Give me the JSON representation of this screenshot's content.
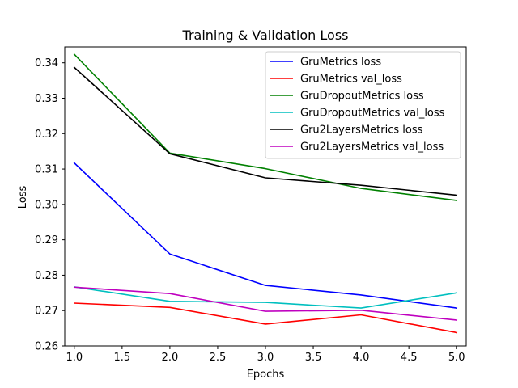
{
  "chart_data": {
    "type": "line",
    "title": "Training & Validation Loss",
    "xlabel": "Epochs",
    "ylabel": "Loss",
    "xlim": [
      0.9,
      5.1
    ],
    "ylim": [
      0.26,
      0.3445
    ],
    "xticks": [
      "1.0",
      "1.5",
      "2.0",
      "2.5",
      "3.0",
      "3.5",
      "4.0",
      "4.5",
      "5.0"
    ],
    "yticks": [
      "0.26",
      "0.27",
      "0.28",
      "0.29",
      "0.30",
      "0.31",
      "0.32",
      "0.33",
      "0.34"
    ],
    "x": [
      1,
      2,
      3,
      4,
      5
    ],
    "grid": false,
    "legend_position": "top-right",
    "series": [
      {
        "name": "GruMetrics loss",
        "color": "#0000ff",
        "values": [
          0.3117,
          0.286,
          0.2771,
          0.2744,
          0.2707
        ]
      },
      {
        "name": "GruMetrics val_loss",
        "color": "#ff0000",
        "values": [
          0.2721,
          0.2709,
          0.2662,
          0.2688,
          0.2638
        ]
      },
      {
        "name": "GruDropoutMetrics loss",
        "color": "#008000",
        "values": [
          0.3424,
          0.3145,
          0.3101,
          0.3045,
          0.3011
        ]
      },
      {
        "name": "GruDropoutMetrics val_loss",
        "color": "#00bfbf",
        "values": [
          0.2767,
          0.2726,
          0.2723,
          0.2707,
          0.275
        ]
      },
      {
        "name": "Gru2LayersMetrics loss",
        "color": "#000000",
        "values": [
          0.3387,
          0.3143,
          0.3075,
          0.3054,
          0.3026
        ]
      },
      {
        "name": "Gru2LayersMetrics val_loss",
        "color": "#bf00bf",
        "values": [
          0.2766,
          0.2748,
          0.2698,
          0.2701,
          0.2673
        ]
      }
    ]
  }
}
